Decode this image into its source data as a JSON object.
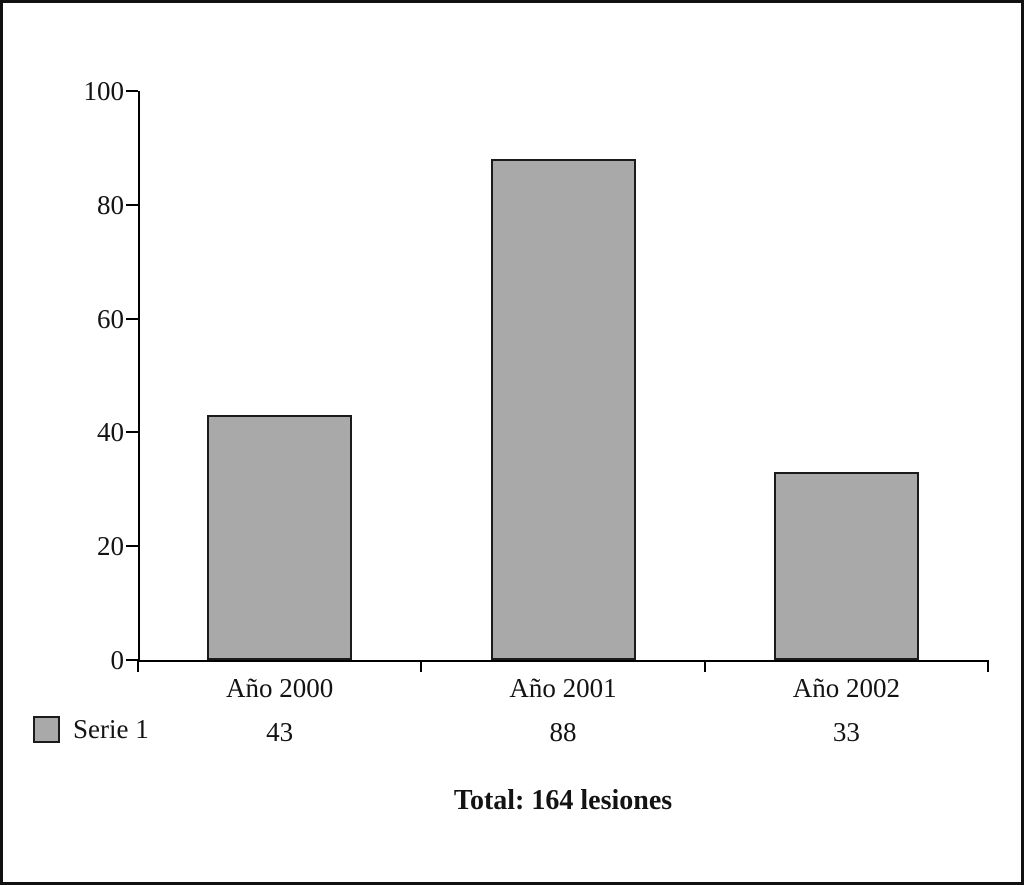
{
  "chart_data": {
    "type": "bar",
    "title": "",
    "categories": [
      "Año 2000",
      "Año 2001",
      "Año 2002"
    ],
    "series": [
      {
        "name": "Serie 1",
        "values": [
          43,
          88,
          33
        ]
      }
    ],
    "ylim": [
      0,
      100
    ],
    "yticks": [
      0,
      20,
      40,
      60,
      80,
      100
    ],
    "grid": false,
    "legend_position": "bottom-left",
    "bar_color": "#a9a9a9",
    "bar_border_color": "#1b1b1b",
    "axis_color": "#000000",
    "footer_text": "Total: 164 lesiones"
  }
}
